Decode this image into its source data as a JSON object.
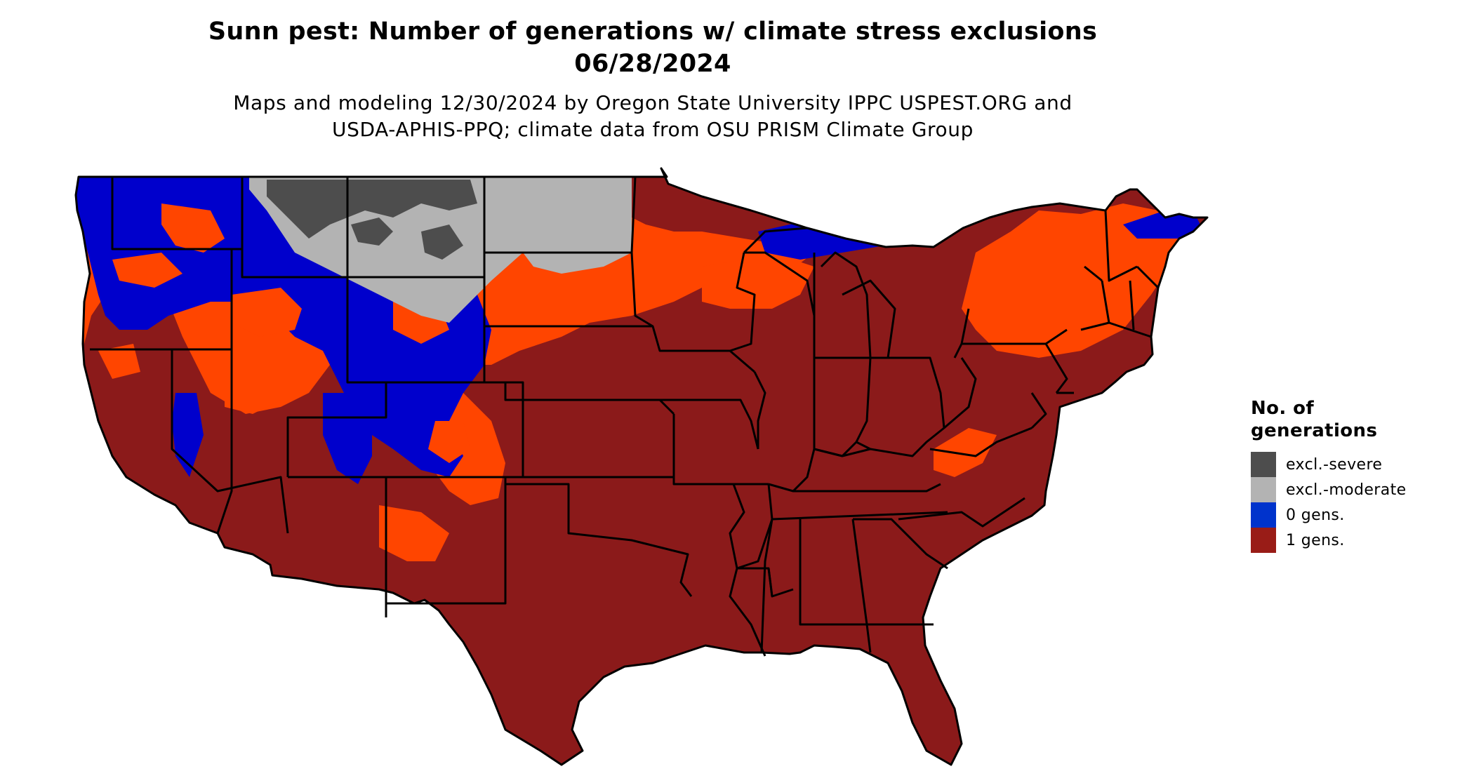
{
  "title": {
    "line1": "Sunn pest: Number of generations w/ climate stress exclusions",
    "line2": "06/28/2024"
  },
  "subtitle": {
    "line1": "Maps and modeling 12/30/2024 by Oregon State University IPPC USPEST.ORG and",
    "line2": "USDA-APHIS-PPQ; climate data from OSU PRISM Climate Group"
  },
  "legend": {
    "title_line1": "No. of",
    "title_line2": "generations",
    "items": [
      {
        "label": "excl.-severe",
        "color": "#4d4d4d"
      },
      {
        "label": "excl.-moderate",
        "color": "#b3b3b3"
      },
      {
        "label": "0 gens.",
        "color": "#0033cc"
      },
      {
        "label": "1 gens.",
        "color": "#991c17"
      }
    ]
  },
  "map_colors": {
    "one_gen": "#8b1a1a",
    "zero_gen": "#0000cc",
    "transition": "#ff4500",
    "excl_severe": "#4d4d4d",
    "excl_moderate": "#b3b3b3",
    "border": "#000000"
  }
}
